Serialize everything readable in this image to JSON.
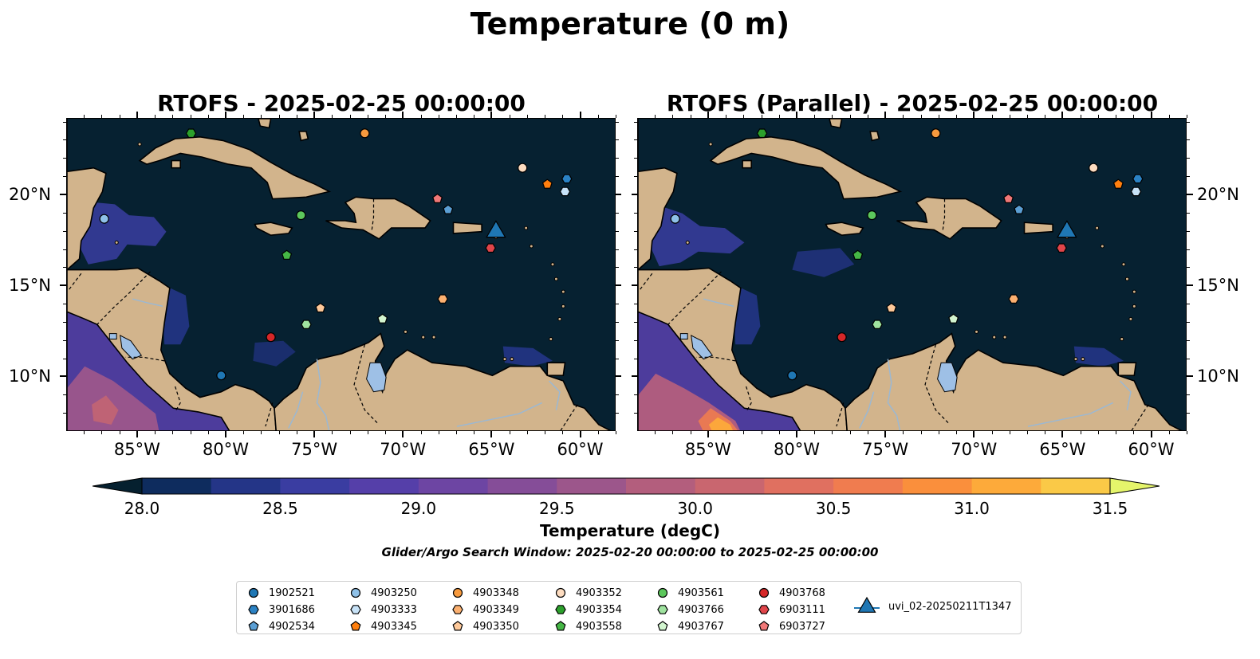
{
  "title": "Temperature (0 m)",
  "panels": [
    {
      "title": "RTOFS - 2025-02-25 00:00:00"
    },
    {
      "title": "RTOFS (Parallel) - 2025-02-25 00:00:00"
    }
  ],
  "axes": {
    "lon_labels": [
      "85°W",
      "80°W",
      "75°W",
      "70°W",
      "65°W",
      "60°W"
    ],
    "lon_values": [
      -85,
      -80,
      -75,
      -70,
      -65,
      -60
    ],
    "lat_labels": [
      "20°N",
      "15°N",
      "10°N"
    ],
    "lat_values": [
      20,
      15,
      10
    ],
    "lon_range": [
      -89,
      -58
    ],
    "lat_range": [
      7,
      24.2
    ]
  },
  "colorbar": {
    "title": "Temperature (degC)",
    "tick_labels": [
      "28.0",
      "28.5",
      "29.0",
      "29.5",
      "30.0",
      "30.5",
      "31.0",
      "31.5"
    ],
    "min": 28.0,
    "max": 31.5,
    "step": 0.25,
    "extend": "both",
    "colors": [
      "#05202f",
      "#0e2c5e",
      "#243587",
      "#3a3da1",
      "#553fa9",
      "#6d45a3",
      "#854d98",
      "#9c568b",
      "#b35e7d",
      "#c9666f",
      "#e07060",
      "#f07c4f",
      "#fa8f3c",
      "#fdaa3a",
      "#fac947",
      "#f0e45a",
      "#e5f56b"
    ]
  },
  "search_window": "Glider/Argo Search Window: 2025-02-20 00:00:00 to 2025-02-25 00:00:00",
  "map_colors": {
    "ocean": "#062131",
    "land": "#d2b48c",
    "rivers": "#9bb8d3",
    "lakes": "#9ec0e6"
  },
  "legend": [
    {
      "label": "1902521",
      "marker": "circle",
      "color": "#1f77b4"
    },
    {
      "label": "3901686",
      "marker": "hexagon",
      "color": "#2b82c4"
    },
    {
      "label": "4902534",
      "marker": "pentagon",
      "color": "#5b9fd4"
    },
    {
      "label": "4903250",
      "marker": "circle",
      "color": "#8fc1e8"
    },
    {
      "label": "4903333",
      "marker": "hexagon",
      "color": "#c7e2f7"
    },
    {
      "label": "4903345",
      "marker": "pentagon",
      "color": "#ff7f0e"
    },
    {
      "label": "4903348",
      "marker": "circle",
      "color": "#f79a3e"
    },
    {
      "label": "4903349",
      "marker": "hexagon",
      "color": "#fbb070"
    },
    {
      "label": "4903350",
      "marker": "pentagon",
      "color": "#fec99a"
    },
    {
      "label": "4903352",
      "marker": "circle",
      "color": "#fddcc0"
    },
    {
      "label": "4903354",
      "marker": "hexagon",
      "color": "#2ca02c"
    },
    {
      "label": "4903558",
      "marker": "pentagon",
      "color": "#45b645"
    },
    {
      "label": "4903561",
      "marker": "circle",
      "color": "#5cc75c"
    },
    {
      "label": "4903766",
      "marker": "hexagon",
      "color": "#9fe39f"
    },
    {
      "label": "4903767",
      "marker": "pentagon",
      "color": "#d2f5cf"
    },
    {
      "label": "4903768",
      "marker": "circle",
      "color": "#d62728"
    },
    {
      "label": "6903111",
      "marker": "hexagon",
      "color": "#e0454a"
    },
    {
      "label": "6903727",
      "marker": "pentagon",
      "color": "#f07878"
    },
    {
      "label": "uvi_02-20250211T1347",
      "marker": "triangle",
      "color": "#1f77b4"
    }
  ],
  "floats": [
    {
      "id": "1902521",
      "lon": -80.3,
      "lat": 10.1
    },
    {
      "id": "3901686",
      "lon": -60.8,
      "lat": 20.9
    },
    {
      "id": "4902534",
      "lon": -67.5,
      "lat": 19.2
    },
    {
      "id": "4903250",
      "lon": -86.9,
      "lat": 18.7
    },
    {
      "id": "4903333",
      "lon": -60.9,
      "lat": 20.2
    },
    {
      "id": "4903345",
      "lon": -61.9,
      "lat": 20.6
    },
    {
      "id": "4903348",
      "lon": -72.2,
      "lat": 23.4
    },
    {
      "id": "4903349",
      "lon": -67.8,
      "lat": 14.3
    },
    {
      "id": "4903350",
      "lon": -74.7,
      "lat": 13.8
    },
    {
      "id": "4903352",
      "lon": -63.3,
      "lat": 21.5
    },
    {
      "id": "4903354",
      "lon": -82.0,
      "lat": 23.4
    },
    {
      "id": "4903558",
      "lon": -76.6,
      "lat": 16.7
    },
    {
      "id": "4903561",
      "lon": -75.8,
      "lat": 18.9
    },
    {
      "id": "4903766",
      "lon": -75.5,
      "lat": 12.9
    },
    {
      "id": "4903767",
      "lon": -71.2,
      "lat": 13.2
    },
    {
      "id": "4903768",
      "lon": -77.5,
      "lat": 12.2
    },
    {
      "id": "6903111",
      "lon": -65.1,
      "lat": 17.1
    },
    {
      "id": "6903727",
      "lon": -68.1,
      "lat": 19.8
    },
    {
      "id": "uvi_02-20250211T1347",
      "lon": -64.8,
      "lat": 18.1
    }
  ]
}
